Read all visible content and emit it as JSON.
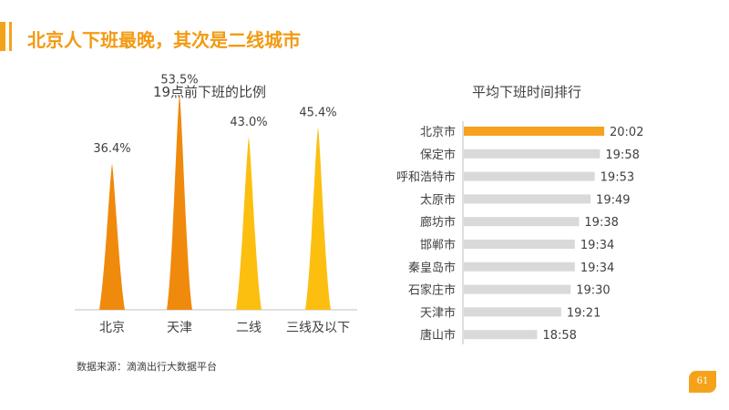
{
  "header": {
    "title": "北京人下班最晚，其次是二线城市"
  },
  "source_note": "数据来源：滴滴出行大数据平台",
  "page_number": "61",
  "colors": {
    "accent": "#f5a21b",
    "dark_orange": "#ef8a0c",
    "gold": "#fcbf10",
    "gray_bar": "#d9d9d9",
    "highlight_bar": "#f7a11f"
  },
  "chart_data": [
    {
      "type": "bar",
      "title": "19点前下班的比例",
      "categories": [
        "北京",
        "天津",
        "二线",
        "三线及以下"
      ],
      "values": [
        36.4,
        53.5,
        43.0,
        45.4
      ],
      "value_labels": [
        "36.4%",
        "53.5%",
        "43.0%",
        "45.4%"
      ],
      "series_colors": [
        "#ef8a0c",
        "#ef8a0c",
        "#fcbf10",
        "#fcbf10"
      ],
      "ylim": [
        0,
        60
      ],
      "grid": false,
      "legend": "none"
    },
    {
      "type": "bar",
      "orientation": "horizontal",
      "title": "平均下班时间排行",
      "categories": [
        "北京市",
        "保定市",
        "呼和浩特市",
        "太原市",
        "廊坊市",
        "邯郸市",
        "秦皇岛市",
        "石家庄市",
        "天津市",
        "唐山市"
      ],
      "values": [
        "20:02",
        "19:58",
        "19:53",
        "19:49",
        "19:38",
        "19:34",
        "19:34",
        "19:30",
        "19:21",
        "18:58"
      ],
      "highlight_index": 0,
      "grid": false,
      "legend": "none"
    }
  ]
}
